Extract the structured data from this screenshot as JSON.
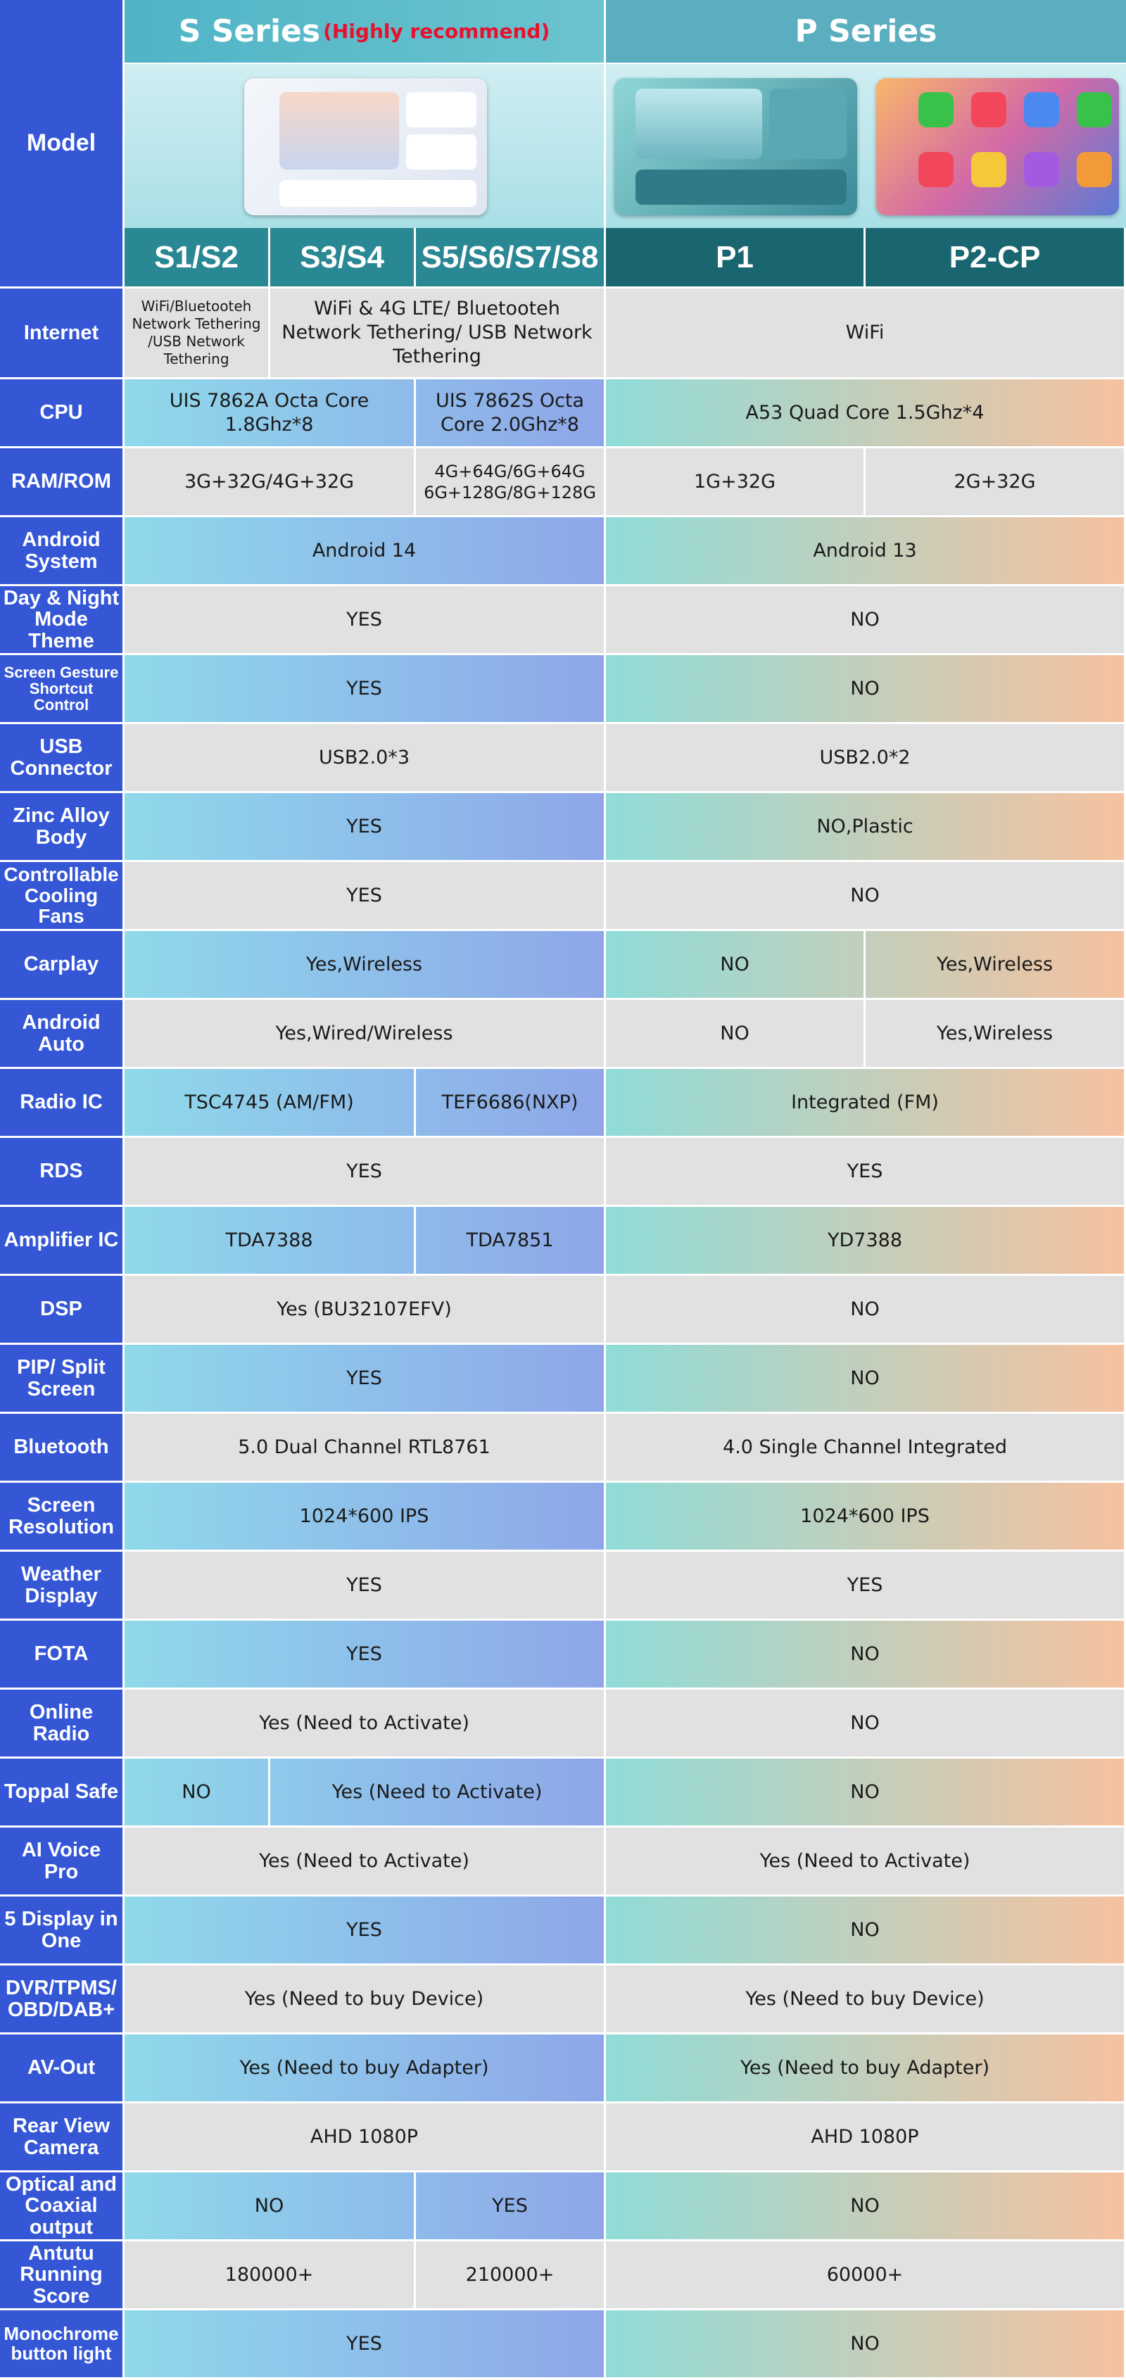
{
  "header": {
    "model_label": "Model",
    "s_series": "S Series",
    "s_note": "(Highly recommend)",
    "p_series": "P Series",
    "models": [
      "S1/S2",
      "S3/S4",
      "S5/S6/S7/S8",
      "P1",
      "P2-CP"
    ]
  },
  "rows": [
    {
      "label": "Internet",
      "s": [
        "WiFi/Bluetooteh Network Tethering /USB Network Tethering",
        "WiFi & 4G LTE/ Bluetooteh Network Tethering/ USB Network Tethering"
      ],
      "p": [
        "WiFi"
      ]
    },
    {
      "label": "CPU",
      "s": [
        "UIS 7862A Octa Core 1.8Ghz*8",
        "UIS 7862S Octa Core 2.0Ghz*8"
      ],
      "p": [
        "A53 Quad Core 1.5Ghz*4"
      ]
    },
    {
      "label": "RAM/ROM",
      "s": [
        "3G+32G/4G+32G",
        "4G+64G/6G+64G 6G+128G/8G+128G"
      ],
      "p": [
        "1G+32G",
        "2G+32G"
      ]
    },
    {
      "label": "Android System",
      "s": [
        "Android 14"
      ],
      "p": [
        "Android 13"
      ]
    },
    {
      "label": "Day & Night Mode Theme",
      "s": [
        "YES"
      ],
      "p": [
        "NO"
      ]
    },
    {
      "label": "Screen Gesture Shortcut Control",
      "s": [
        "YES"
      ],
      "p": [
        "NO"
      ]
    },
    {
      "label": "USB Connector",
      "s": [
        "USB2.0*3"
      ],
      "p": [
        "USB2.0*2"
      ]
    },
    {
      "label": "Zinc Alloy Body",
      "s": [
        "YES"
      ],
      "p": [
        "NO,Plastic"
      ]
    },
    {
      "label": "Controllable Cooling Fans",
      "s": [
        "YES"
      ],
      "p": [
        "NO"
      ]
    },
    {
      "label": "Carplay",
      "s": [
        "Yes,Wireless"
      ],
      "p": [
        "NO",
        "Yes,Wireless"
      ]
    },
    {
      "label": "Android Auto",
      "s": [
        "Yes,Wired/Wireless"
      ],
      "p": [
        "NO",
        "Yes,Wireless"
      ]
    },
    {
      "label": "Radio IC",
      "s": [
        "TSC4745 (AM/FM)",
        "TEF6686(NXP)"
      ],
      "p": [
        "Integrated (FM)"
      ]
    },
    {
      "label": "RDS",
      "s": [
        "YES"
      ],
      "p": [
        "YES"
      ]
    },
    {
      "label": "Amplifier IC",
      "s": [
        "TDA7388",
        "TDA7851"
      ],
      "p": [
        "YD7388"
      ]
    },
    {
      "label": "DSP",
      "s": [
        "Yes (BU32107EFV)"
      ],
      "p": [
        "NO"
      ]
    },
    {
      "label": "PIP/ Split Screen",
      "s": [
        "YES"
      ],
      "p": [
        "NO"
      ]
    },
    {
      "label": "Bluetooth",
      "s": [
        "5.0 Dual Channel RTL8761"
      ],
      "p": [
        "4.0 Single Channel Integrated"
      ]
    },
    {
      "label": "Screen Resolution",
      "s": [
        "1024*600 IPS"
      ],
      "p": [
        "1024*600 IPS"
      ]
    },
    {
      "label": "Weather Display",
      "s": [
        "YES"
      ],
      "p": [
        "YES"
      ]
    },
    {
      "label": "FOTA",
      "s": [
        "YES"
      ],
      "p": [
        "NO"
      ]
    },
    {
      "label": "Online Radio",
      "s": [
        "Yes (Need to Activate)"
      ],
      "p": [
        "NO"
      ]
    },
    {
      "label": "Toppal Safe",
      "s": [
        "NO",
        "Yes (Need to Activate)"
      ],
      "p": [
        "NO"
      ]
    },
    {
      "label": "AI Voice Pro",
      "s": [
        "Yes (Need to Activate)"
      ],
      "p": [
        "Yes (Need to Activate)"
      ]
    },
    {
      "label": "5 Display in One",
      "s": [
        "YES"
      ],
      "p": [
        "NO"
      ]
    },
    {
      "label": "DVR/TPMS/ OBD/DAB+",
      "s": [
        "Yes (Need to buy Device)"
      ],
      "p": [
        "Yes (Need to buy Device)"
      ]
    },
    {
      "label": "AV-Out",
      "s": [
        "Yes (Need to buy Adapter)"
      ],
      "p": [
        "Yes (Need to buy Adapter)"
      ]
    },
    {
      "label": "Rear View Camera",
      "s": [
        "AHD 1080P"
      ],
      "p": [
        "AHD 1080P"
      ]
    },
    {
      "label": "Optical and Coaxial output",
      "s": [
        "NO",
        "YES"
      ],
      "p": [
        "NO"
      ]
    },
    {
      "label": "Antutu Running Score",
      "s": [
        "180000+",
        "210000+"
      ],
      "p": [
        "60000+"
      ]
    },
    {
      "label": "Monochrome button light",
      "s": [
        "YES"
      ],
      "p": [
        "NO"
      ]
    }
  ]
}
